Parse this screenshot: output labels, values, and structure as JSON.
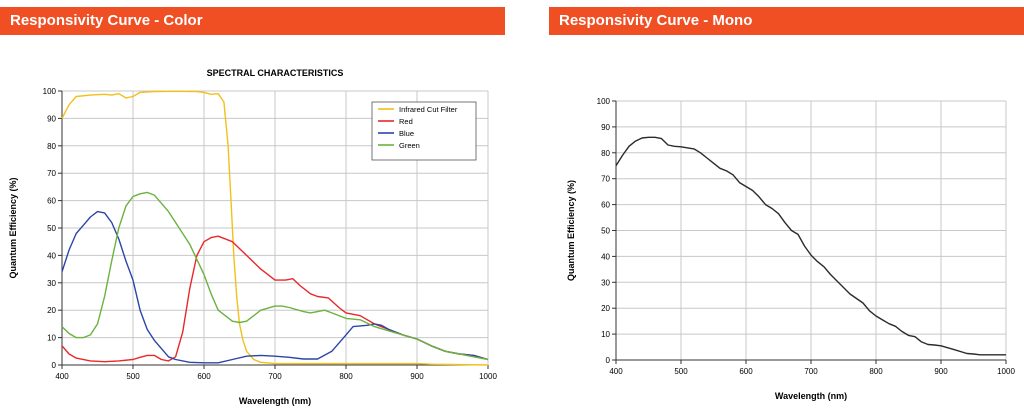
{
  "headers": {
    "color": "Responsivity Curve - Color",
    "mono": "Responsivity Curve - Mono"
  },
  "chart_data": [
    {
      "type": "line",
      "title": "SPECTRAL CHARACTERISTICS",
      "xlabel": "Wavelength (nm)",
      "ylabel": "Quantum Efficiency (%)",
      "xlim": [
        400,
        1000
      ],
      "ylim": [
        0,
        100
      ],
      "xticks": [
        400,
        500,
        600,
        700,
        800,
        900,
        1000
      ],
      "yticks": [
        0,
        10,
        20,
        30,
        40,
        50,
        60,
        70,
        80,
        90,
        100
      ],
      "grid": true,
      "legend_position": "top-right",
      "series": [
        {
          "name": "Infrared Cut Filter",
          "color": "#f2c01b",
          "points": [
            [
              400,
              90
            ],
            [
              410,
              95
            ],
            [
              420,
              98
            ],
            [
              440,
              98.5
            ],
            [
              460,
              98.8
            ],
            [
              470,
              98.5
            ],
            [
              480,
              99
            ],
            [
              490,
              97.5
            ],
            [
              500,
              98
            ],
            [
              510,
              99.5
            ],
            [
              530,
              99.8
            ],
            [
              560,
              99.9
            ],
            [
              590,
              99.8
            ],
            [
              600,
              99.5
            ],
            [
              610,
              98.8
            ],
            [
              620,
              99
            ],
            [
              628,
              96
            ],
            [
              634,
              80
            ],
            [
              638,
              60
            ],
            [
              642,
              40
            ],
            [
              646,
              25
            ],
            [
              650,
              15
            ],
            [
              655,
              9
            ],
            [
              660,
              5
            ],
            [
              670,
              2
            ],
            [
              680,
              1
            ],
            [
              700,
              0.5
            ],
            [
              900,
              0.5
            ],
            [
              920,
              0.3
            ],
            [
              1000,
              0
            ]
          ]
        },
        {
          "name": "Red",
          "color": "#e8282b",
          "points": [
            [
              400,
              7
            ],
            [
              410,
              4
            ],
            [
              420,
              2.5
            ],
            [
              440,
              1.5
            ],
            [
              460,
              1.2
            ],
            [
              480,
              1.5
            ],
            [
              500,
              2
            ],
            [
              510,
              2.8
            ],
            [
              520,
              3.5
            ],
            [
              530,
              3.5
            ],
            [
              540,
              2
            ],
            [
              550,
              1.5
            ],
            [
              560,
              3
            ],
            [
              570,
              12
            ],
            [
              580,
              28
            ],
            [
              590,
              40
            ],
            [
              600,
              45
            ],
            [
              610,
              46.5
            ],
            [
              620,
              47
            ],
            [
              640,
              45
            ],
            [
              660,
              40
            ],
            [
              680,
              35
            ],
            [
              700,
              31
            ],
            [
              715,
              31
            ],
            [
              725,
              31.5
            ],
            [
              735,
              29
            ],
            [
              750,
              26
            ],
            [
              760,
              25
            ],
            [
              775,
              24.5
            ],
            [
              790,
              21
            ],
            [
              800,
              19
            ],
            [
              820,
              18
            ],
            [
              840,
              15
            ],
            [
              860,
              13
            ],
            [
              880,
              11
            ],
            [
              900,
              9.5
            ],
            [
              920,
              7
            ],
            [
              940,
              5
            ],
            [
              960,
              4
            ],
            [
              980,
              3.5
            ],
            [
              1000,
              2
            ]
          ]
        },
        {
          "name": "Blue",
          "color": "#2b45a8",
          "points": [
            [
              400,
              34
            ],
            [
              410,
              42
            ],
            [
              420,
              48
            ],
            [
              430,
              51
            ],
            [
              440,
              54
            ],
            [
              450,
              56
            ],
            [
              460,
              55.5
            ],
            [
              470,
              52
            ],
            [
              480,
              46
            ],
            [
              490,
              38
            ],
            [
              500,
              31
            ],
            [
              510,
              20
            ],
            [
              520,
              13
            ],
            [
              530,
              9
            ],
            [
              540,
              6
            ],
            [
              550,
              3
            ],
            [
              560,
              2
            ],
            [
              580,
              1
            ],
            [
              600,
              0.8
            ],
            [
              620,
              0.8
            ],
            [
              640,
              2
            ],
            [
              660,
              3.2
            ],
            [
              680,
              3.5
            ],
            [
              700,
              3.2
            ],
            [
              720,
              2.8
            ],
            [
              740,
              2.2
            ],
            [
              760,
              2.2
            ],
            [
              780,
              5
            ],
            [
              800,
              11
            ],
            [
              810,
              14
            ],
            [
              830,
              14.5
            ],
            [
              840,
              15
            ],
            [
              850,
              14.5
            ],
            [
              860,
              13
            ],
            [
              880,
              11
            ],
            [
              900,
              9.5
            ],
            [
              920,
              7
            ],
            [
              940,
              5
            ],
            [
              960,
              4
            ],
            [
              980,
              3.5
            ],
            [
              1000,
              2
            ]
          ]
        },
        {
          "name": "Green",
          "color": "#6bb23e",
          "points": [
            [
              400,
              14
            ],
            [
              410,
              11.5
            ],
            [
              420,
              10
            ],
            [
              430,
              10
            ],
            [
              440,
              11
            ],
            [
              450,
              15
            ],
            [
              460,
              25
            ],
            [
              470,
              38
            ],
            [
              480,
              50
            ],
            [
              490,
              58
            ],
            [
              500,
              61.5
            ],
            [
              510,
              62.5
            ],
            [
              520,
              63
            ],
            [
              530,
              62
            ],
            [
              540,
              59
            ],
            [
              550,
              56
            ],
            [
              560,
              52
            ],
            [
              580,
              44
            ],
            [
              600,
              33
            ],
            [
              610,
              26
            ],
            [
              620,
              20
            ],
            [
              640,
              16
            ],
            [
              650,
              15.5
            ],
            [
              660,
              16
            ],
            [
              670,
              18
            ],
            [
              680,
              20
            ],
            [
              700,
              21.5
            ],
            [
              710,
              21.5
            ],
            [
              720,
              21
            ],
            [
              740,
              19.5
            ],
            [
              750,
              19
            ],
            [
              760,
              19.5
            ],
            [
              770,
              20
            ],
            [
              780,
              19
            ],
            [
              800,
              17
            ],
            [
              820,
              16.5
            ],
            [
              840,
              14
            ],
            [
              860,
              12.5
            ],
            [
              880,
              11
            ],
            [
              900,
              9.5
            ],
            [
              920,
              7
            ],
            [
              940,
              5
            ],
            [
              960,
              4
            ],
            [
              980,
              3
            ],
            [
              1000,
              2
            ]
          ]
        }
      ]
    },
    {
      "type": "line",
      "title": "",
      "xlabel": "Wavelength (nm)",
      "ylabel": "Quantum Efficiency (%)",
      "xlim": [
        400,
        1000
      ],
      "ylim": [
        0,
        100
      ],
      "xticks": [
        400,
        500,
        600,
        700,
        800,
        900,
        1000
      ],
      "yticks": [
        0,
        10,
        20,
        30,
        40,
        50,
        60,
        70,
        80,
        90,
        100
      ],
      "grid": true,
      "series": [
        {
          "color": "#2b2b2b",
          "points": [
            [
              400,
              75
            ],
            [
              410,
              79
            ],
            [
              420,
              82.5
            ],
            [
              430,
              84.5
            ],
            [
              440,
              85.7
            ],
            [
              450,
              86
            ],
            [
              460,
              86
            ],
            [
              470,
              85.5
            ],
            [
              480,
              83
            ],
            [
              490,
              82.5
            ],
            [
              500,
              82.3
            ],
            [
              520,
              81.5
            ],
            [
              530,
              80
            ],
            [
              540,
              78
            ],
            [
              550,
              76
            ],
            [
              560,
              74
            ],
            [
              570,
              73
            ],
            [
              580,
              71.5
            ],
            [
              590,
              68.5
            ],
            [
              600,
              67
            ],
            [
              610,
              65.5
            ],
            [
              620,
              63
            ],
            [
              630,
              60
            ],
            [
              640,
              58.5
            ],
            [
              650,
              56.5
            ],
            [
              660,
              53
            ],
            [
              670,
              50
            ],
            [
              680,
              48.5
            ],
            [
              690,
              44
            ],
            [
              700,
              40.5
            ],
            [
              710,
              38
            ],
            [
              720,
              36
            ],
            [
              730,
              33
            ],
            [
              740,
              30.5
            ],
            [
              750,
              28
            ],
            [
              760,
              25.5
            ],
            [
              780,
              22
            ],
            [
              790,
              19
            ],
            [
              800,
              17
            ],
            [
              810,
              15.5
            ],
            [
              820,
              14
            ],
            [
              830,
              13
            ],
            [
              840,
              11
            ],
            [
              850,
              9.5
            ],
            [
              860,
              9
            ],
            [
              870,
              7
            ],
            [
              880,
              6
            ],
            [
              890,
              5.8
            ],
            [
              900,
              5.5
            ],
            [
              920,
              4
            ],
            [
              940,
              2.5
            ],
            [
              950,
              2.3
            ],
            [
              960,
              2
            ],
            [
              1000,
              2
            ]
          ]
        }
      ]
    }
  ]
}
